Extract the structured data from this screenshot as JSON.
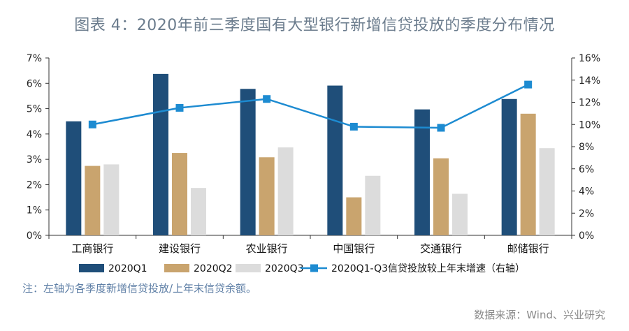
{
  "title": "图表 4：2020年前三季度国有大型银行新增信贷投放的季度分布情况",
  "note": "注：左轴为各季度新增信贷投放/上年末信贷余额。",
  "source": "数据来源：Wind、兴业研究",
  "colors": {
    "q1": "#1f4e79",
    "q2": "#c9a46e",
    "q3": "#dcdcdc",
    "line": "#1d8bd1",
    "axis": "#333333"
  },
  "chart_data": {
    "type": "bar",
    "categories": [
      "工商银行",
      "建设银行",
      "农业银行",
      "中国银行",
      "交通银行",
      "邮储银行"
    ],
    "series": [
      {
        "name": "2020Q1",
        "axis": "left",
        "type": "bar",
        "values": [
          4.5,
          6.37,
          5.78,
          5.91,
          4.97,
          5.38
        ]
      },
      {
        "name": "2020Q2",
        "axis": "left",
        "type": "bar",
        "values": [
          2.74,
          3.25,
          3.08,
          1.5,
          3.04,
          4.8
        ]
      },
      {
        "name": "2020Q3",
        "axis": "left",
        "type": "bar",
        "values": [
          2.8,
          1.87,
          3.47,
          2.35,
          1.64,
          3.44
        ]
      },
      {
        "name": "2020Q1-Q3信贷投放较上年末增速（右轴）",
        "axis": "right",
        "type": "line",
        "values": [
          10.0,
          11.5,
          12.3,
          9.8,
          9.7,
          13.6
        ]
      }
    ],
    "left_axis": {
      "min": 0,
      "max": 7,
      "ticks": [
        "0%",
        "1%",
        "2%",
        "3%",
        "4%",
        "5%",
        "6%",
        "7%"
      ]
    },
    "right_axis": {
      "min": 0,
      "max": 16,
      "ticks": [
        "0%",
        "2%",
        "4%",
        "6%",
        "8%",
        "10%",
        "12%",
        "14%",
        "16%"
      ]
    },
    "grid": false,
    "legend_position": "bottom"
  }
}
